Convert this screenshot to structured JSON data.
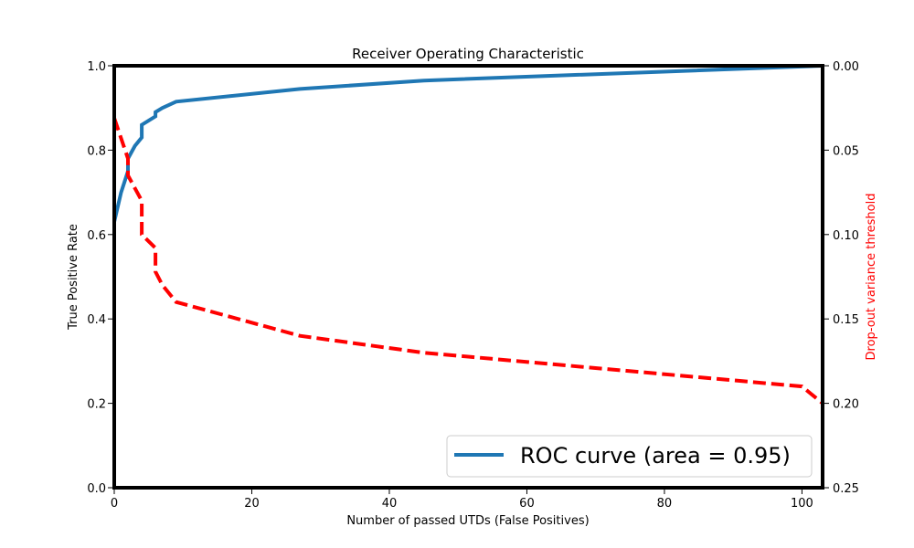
{
  "chart_data": {
    "type": "line",
    "title": "Receiver Operating Characteristic",
    "xlabel": "Number of passed UTDs (False Positives)",
    "ylabel": "True Positive Rate",
    "y2label": "Drop-out variance threshold",
    "xlim": [
      0,
      103
    ],
    "ylim": [
      0,
      1
    ],
    "y2lim": [
      0.25,
      0
    ],
    "y2_inverted": true,
    "xticks": [
      "0",
      "20",
      "40",
      "60",
      "80",
      "100"
    ],
    "xtick_values": [
      0,
      20,
      40,
      60,
      80,
      100
    ],
    "yticks": [
      "0.0",
      "0.2",
      "0.4",
      "0.6",
      "0.8",
      "1.0"
    ],
    "ytick_values": [
      0,
      0.2,
      0.4,
      0.6,
      0.8,
      1.0
    ],
    "y2ticks": [
      "0.00",
      "0.05",
      "0.10",
      "0.15",
      "0.20",
      "0.25"
    ],
    "y2tick_values": [
      0,
      0.05,
      0.1,
      0.15,
      0.2,
      0.25
    ],
    "grid": false,
    "legend_position": "bottom-right",
    "series": [
      {
        "name": "ROC curve (area = 0.95)",
        "axis": "left",
        "color": "#1f77b4",
        "style": "solid",
        "x": [
          0,
          1,
          2,
          2,
          3,
          4,
          4,
          5,
          6,
          6,
          7,
          9,
          27,
          45,
          103
        ],
        "y": [
          0.63,
          0.7,
          0.75,
          0.78,
          0.81,
          0.83,
          0.86,
          0.87,
          0.88,
          0.89,
          0.9,
          0.915,
          0.945,
          0.965,
          1.0
        ]
      },
      {
        "name": "",
        "axis": "right",
        "color": "#ff0000",
        "style": "dashed",
        "x": [
          0,
          2,
          2,
          4,
          4,
          6,
          6,
          7,
          9,
          27,
          45,
          100,
          103
        ],
        "y": [
          0.031,
          0.055,
          0.065,
          0.08,
          0.1,
          0.108,
          0.122,
          0.13,
          0.14,
          0.16,
          0.17,
          0.19,
          0.2
        ]
      }
    ]
  }
}
